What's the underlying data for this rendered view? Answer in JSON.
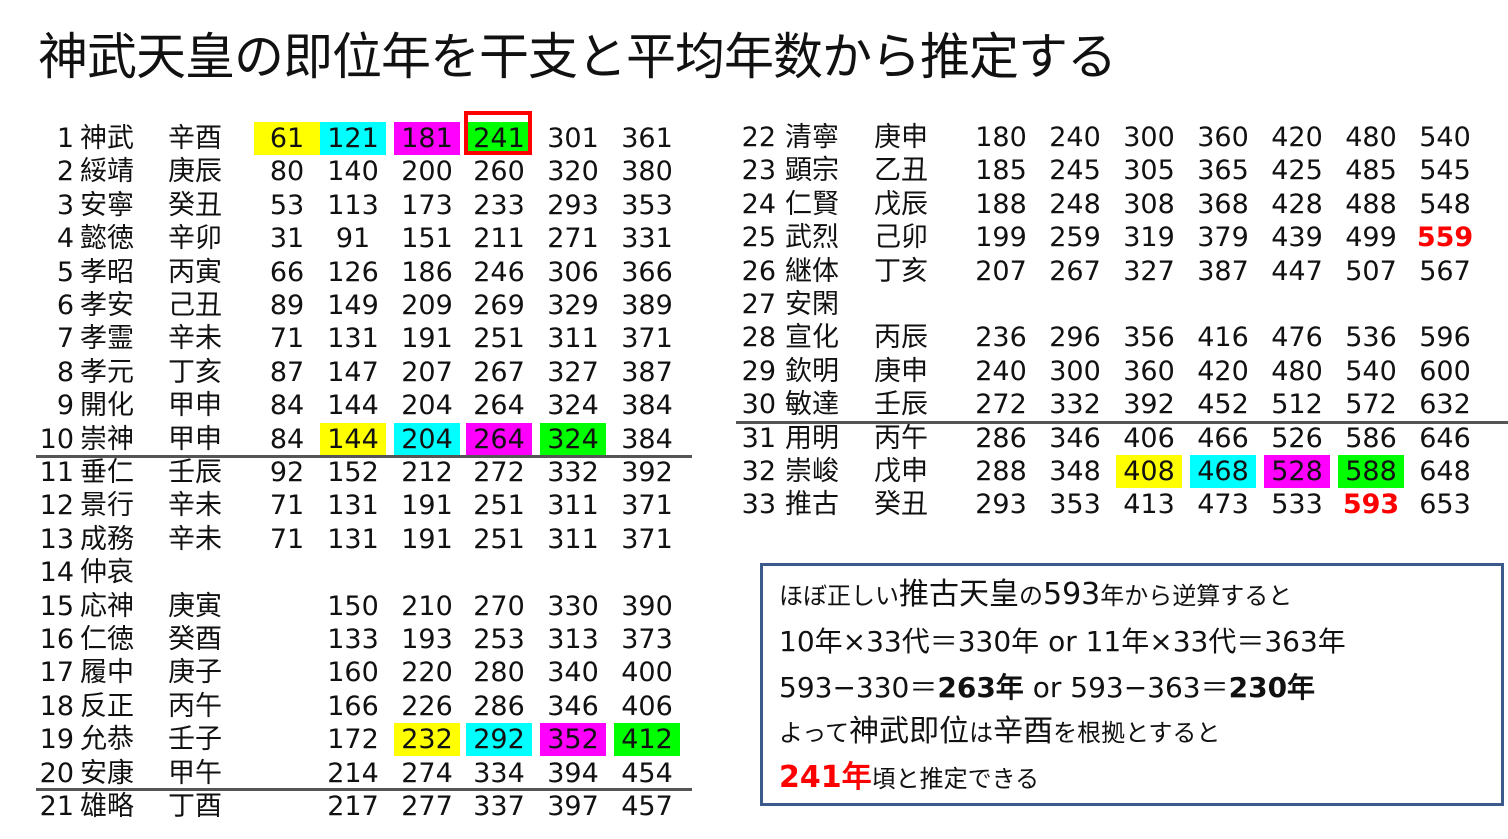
{
  "title": "神武天皇の即位年を干支と平均年数から推定する",
  "left_rows": [
    {
      "n": "1",
      "name": "神武",
      "kan": "辛酉",
      "years": [
        {
          "v": "61",
          "hl": "yellow"
        },
        {
          "v": "121",
          "hl": "cyan"
        },
        {
          "v": "181",
          "hl": "magenta"
        },
        {
          "v": "241",
          "hl": "green"
        },
        {
          "v": "301"
        },
        {
          "v": "361"
        }
      ]
    },
    {
      "n": "2",
      "name": "綏靖",
      "kan": "庚辰",
      "years": [
        {
          "v": "80"
        },
        {
          "v": "140"
        },
        {
          "v": "200"
        },
        {
          "v": "260"
        },
        {
          "v": "320"
        },
        {
          "v": "380"
        }
      ]
    },
    {
      "n": "3",
      "name": "安寧",
      "kan": "癸丑",
      "years": [
        {
          "v": "53"
        },
        {
          "v": "113"
        },
        {
          "v": "173"
        },
        {
          "v": "233"
        },
        {
          "v": "293"
        },
        {
          "v": "353"
        }
      ]
    },
    {
      "n": "4",
      "name": "懿徳",
      "kan": "辛卯",
      "years": [
        {
          "v": "31"
        },
        {
          "v": "91"
        },
        {
          "v": "151"
        },
        {
          "v": "211"
        },
        {
          "v": "271"
        },
        {
          "v": "331"
        }
      ]
    },
    {
      "n": "5",
      "name": "孝昭",
      "kan": "丙寅",
      "years": [
        {
          "v": "66"
        },
        {
          "v": "126"
        },
        {
          "v": "186"
        },
        {
          "v": "246"
        },
        {
          "v": "306"
        },
        {
          "v": "366"
        }
      ]
    },
    {
      "n": "6",
      "name": "孝安",
      "kan": "己丑",
      "years": [
        {
          "v": "89"
        },
        {
          "v": "149"
        },
        {
          "v": "209"
        },
        {
          "v": "269"
        },
        {
          "v": "329"
        },
        {
          "v": "389"
        }
      ]
    },
    {
      "n": "7",
      "name": "孝霊",
      "kan": "辛未",
      "years": [
        {
          "v": "71"
        },
        {
          "v": "131"
        },
        {
          "v": "191"
        },
        {
          "v": "251"
        },
        {
          "v": "311"
        },
        {
          "v": "371"
        }
      ]
    },
    {
      "n": "8",
      "name": "孝元",
      "kan": "丁亥",
      "years": [
        {
          "v": "87"
        },
        {
          "v": "147"
        },
        {
          "v": "207"
        },
        {
          "v": "267"
        },
        {
          "v": "327"
        },
        {
          "v": "387"
        }
      ]
    },
    {
      "n": "9",
      "name": "開化",
      "kan": "甲申",
      "years": [
        {
          "v": "84"
        },
        {
          "v": "144"
        },
        {
          "v": "204"
        },
        {
          "v": "264"
        },
        {
          "v": "324"
        },
        {
          "v": "384"
        }
      ]
    },
    {
      "n": "10",
      "name": "崇神",
      "kan": "甲申",
      "years": [
        {
          "v": "84"
        },
        {
          "v": "144",
          "hl": "yellow"
        },
        {
          "v": "204",
          "hl": "cyan"
        },
        {
          "v": "264",
          "hl": "magenta"
        },
        {
          "v": "324",
          "hl": "green"
        },
        {
          "v": "384"
        }
      ]
    },
    {
      "n": "11",
      "name": "垂仁",
      "kan": "壬辰",
      "years": [
        {
          "v": "92"
        },
        {
          "v": "152"
        },
        {
          "v": "212"
        },
        {
          "v": "272"
        },
        {
          "v": "332"
        },
        {
          "v": "392"
        }
      ]
    },
    {
      "n": "12",
      "name": "景行",
      "kan": "辛未",
      "years": [
        {
          "v": "71"
        },
        {
          "v": "131"
        },
        {
          "v": "191"
        },
        {
          "v": "251"
        },
        {
          "v": "311"
        },
        {
          "v": "371"
        }
      ]
    },
    {
      "n": "13",
      "name": "成務",
      "kan": "辛未",
      "years": [
        {
          "v": "71"
        },
        {
          "v": "131"
        },
        {
          "v": "191"
        },
        {
          "v": "251"
        },
        {
          "v": "311"
        },
        {
          "v": "371"
        }
      ]
    },
    {
      "n": "14",
      "name": "仲哀",
      "kan": "",
      "years": []
    },
    {
      "n": "15",
      "name": "応神",
      "kan": "庚寅",
      "years": [
        {
          "v": ""
        },
        {
          "v": "150"
        },
        {
          "v": "210"
        },
        {
          "v": "270"
        },
        {
          "v": "330"
        },
        {
          "v": "390"
        }
      ]
    },
    {
      "n": "16",
      "name": "仁徳",
      "kan": "癸酉",
      "years": [
        {
          "v": ""
        },
        {
          "v": "133"
        },
        {
          "v": "193"
        },
        {
          "v": "253"
        },
        {
          "v": "313"
        },
        {
          "v": "373"
        }
      ]
    },
    {
      "n": "17",
      "name": "履中",
      "kan": "庚子",
      "years": [
        {
          "v": ""
        },
        {
          "v": "160"
        },
        {
          "v": "220"
        },
        {
          "v": "280"
        },
        {
          "v": "340"
        },
        {
          "v": "400"
        }
      ]
    },
    {
      "n": "18",
      "name": "反正",
      "kan": "丙午",
      "years": [
        {
          "v": ""
        },
        {
          "v": "166"
        },
        {
          "v": "226"
        },
        {
          "v": "286"
        },
        {
          "v": "346"
        },
        {
          "v": "406"
        }
      ]
    },
    {
      "n": "19",
      "name": "允恭",
      "kan": "壬子",
      "years": [
        {
          "v": ""
        },
        {
          "v": "172"
        },
        {
          "v": "232",
          "hl": "yellow"
        },
        {
          "v": "292",
          "hl": "cyan"
        },
        {
          "v": "352",
          "hl": "magenta"
        },
        {
          "v": "412",
          "hl": "green"
        }
      ]
    },
    {
      "n": "20",
      "name": "安康",
      "kan": "甲午",
      "years": [
        {
          "v": ""
        },
        {
          "v": "214"
        },
        {
          "v": "274"
        },
        {
          "v": "334"
        },
        {
          "v": "394"
        },
        {
          "v": "454"
        }
      ]
    },
    {
      "n": "21",
      "name": "雄略",
      "kan": "丁酉",
      "years": [
        {
          "v": ""
        },
        {
          "v": "217"
        },
        {
          "v": "277"
        },
        {
          "v": "337"
        },
        {
          "v": "397"
        },
        {
          "v": "457"
        }
      ]
    }
  ],
  "right_rows": [
    {
      "n": "22",
      "name": "清寧",
      "kan": "庚申",
      "years": [
        {
          "v": "180"
        },
        {
          "v": "240"
        },
        {
          "v": "300"
        },
        {
          "v": "360"
        },
        {
          "v": "420"
        },
        {
          "v": "480"
        },
        {
          "v": "540"
        }
      ]
    },
    {
      "n": "23",
      "name": "顕宗",
      "kan": "乙丑",
      "years": [
        {
          "v": "185"
        },
        {
          "v": "245"
        },
        {
          "v": "305"
        },
        {
          "v": "365"
        },
        {
          "v": "425"
        },
        {
          "v": "485"
        },
        {
          "v": "545"
        }
      ]
    },
    {
      "n": "24",
      "name": "仁賢",
      "kan": "戊辰",
      "years": [
        {
          "v": "188"
        },
        {
          "v": "248"
        },
        {
          "v": "308"
        },
        {
          "v": "368"
        },
        {
          "v": "428"
        },
        {
          "v": "488"
        },
        {
          "v": "548"
        }
      ]
    },
    {
      "n": "25",
      "name": "武烈",
      "kan": "己卯",
      "years": [
        {
          "v": "199"
        },
        {
          "v": "259"
        },
        {
          "v": "319"
        },
        {
          "v": "379"
        },
        {
          "v": "439"
        },
        {
          "v": "499"
        },
        {
          "v": "559",
          "hl": "red"
        }
      ]
    },
    {
      "n": "26",
      "name": "継体",
      "kan": "丁亥",
      "years": [
        {
          "v": "207"
        },
        {
          "v": "267"
        },
        {
          "v": "327"
        },
        {
          "v": "387"
        },
        {
          "v": "447"
        },
        {
          "v": "507"
        },
        {
          "v": "567"
        }
      ]
    },
    {
      "n": "27",
      "name": "安閑",
      "kan": "",
      "years": []
    },
    {
      "n": "28",
      "name": "宣化",
      "kan": "丙辰",
      "years": [
        {
          "v": "236"
        },
        {
          "v": "296"
        },
        {
          "v": "356"
        },
        {
          "v": "416"
        },
        {
          "v": "476"
        },
        {
          "v": "536"
        },
        {
          "v": "596"
        }
      ]
    },
    {
      "n": "29",
      "name": "欽明",
      "kan": "庚申",
      "years": [
        {
          "v": "240"
        },
        {
          "v": "300"
        },
        {
          "v": "360"
        },
        {
          "v": "420"
        },
        {
          "v": "480"
        },
        {
          "v": "540"
        },
        {
          "v": "600"
        }
      ]
    },
    {
      "n": "30",
      "name": "敏達",
      "kan": "壬辰",
      "years": [
        {
          "v": "272"
        },
        {
          "v": "332"
        },
        {
          "v": "392"
        },
        {
          "v": "452"
        },
        {
          "v": "512"
        },
        {
          "v": "572"
        },
        {
          "v": "632"
        }
      ]
    },
    {
      "n": "31",
      "name": "用明",
      "kan": "丙午",
      "years": [
        {
          "v": "286"
        },
        {
          "v": "346"
        },
        {
          "v": "406"
        },
        {
          "v": "466"
        },
        {
          "v": "526"
        },
        {
          "v": "586"
        },
        {
          "v": "646"
        }
      ]
    },
    {
      "n": "32",
      "name": "崇峻",
      "kan": "戊申",
      "years": [
        {
          "v": "288"
        },
        {
          "v": "348"
        },
        {
          "v": "408",
          "hl": "yellow"
        },
        {
          "v": "468",
          "hl": "cyan"
        },
        {
          "v": "528",
          "hl": "magenta"
        },
        {
          "v": "588",
          "hl": "green"
        },
        {
          "v": "648"
        }
      ]
    },
    {
      "n": "33",
      "name": "推古",
      "kan": "癸丑",
      "years": [
        {
          "v": "293"
        },
        {
          "v": "353"
        },
        {
          "v": "413"
        },
        {
          "v": "473"
        },
        {
          "v": "533"
        },
        {
          "v": "593",
          "hl": "red"
        },
        {
          "v": "653"
        }
      ]
    }
  ],
  "note": {
    "l1a": "ほぼ正しい",
    "l1b": "推古天皇",
    "l1c": "の",
    "l1d": "593",
    "l1e": "年から逆算すると",
    "l2": "10年×33代＝330年 or 11年×33代＝363年",
    "l3a": "593−330＝",
    "l3b": "263年",
    "l3c": " or 593−363＝",
    "l3d": "230年",
    "l4a": "よって",
    "l4b": "神武即位",
    "l4c": "は",
    "l4d": "辛酉",
    "l4e": "を根拠とすると",
    "l5a": "241年",
    "l5b": "頃と推定できる"
  }
}
